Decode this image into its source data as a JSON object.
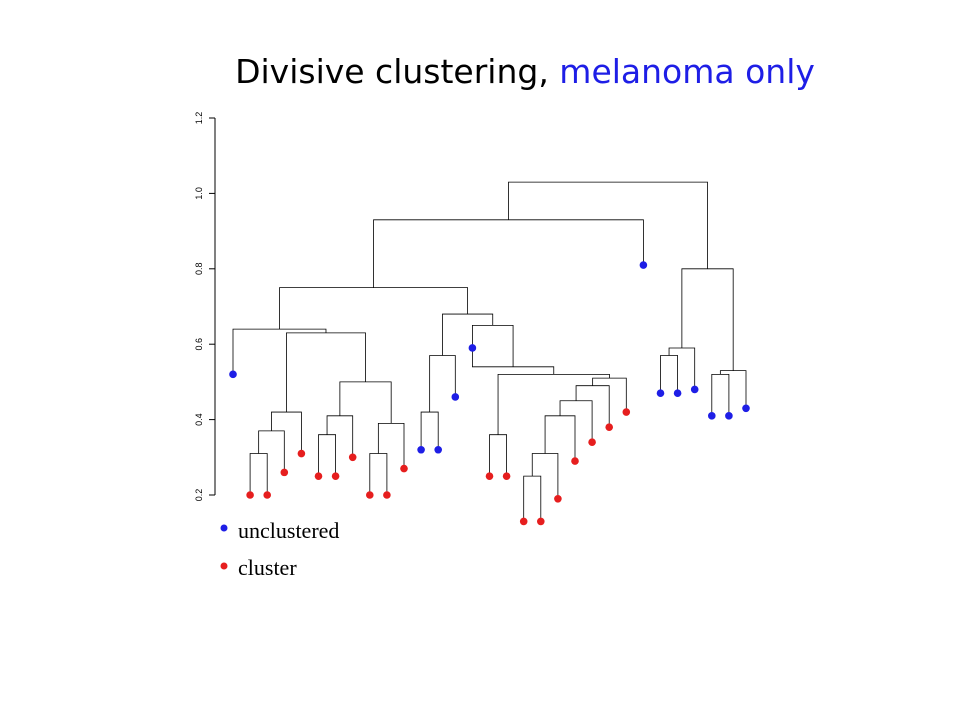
{
  "title": {
    "main": "Divisive clustering, ",
    "highlight": "melanoma only",
    "highlight_color": "#1e1ee6"
  },
  "chart_data": {
    "type": "dendrogram",
    "title": "Divisive clustering, melanoma only",
    "y_ticks": [
      "0.2",
      "0.4",
      "0.6",
      "0.8",
      "1.0",
      "1.2"
    ],
    "ylim": [
      0.2,
      1.2
    ],
    "legend": [
      {
        "label": "unclustered",
        "color": "#1e1ee6"
      },
      {
        "label": "cluster",
        "color": "#e61e1e"
      }
    ],
    "leaves": [
      {
        "x": 1,
        "h": 0.52,
        "cls": "unclustered"
      },
      {
        "x": 2,
        "h": 0.2,
        "cls": "cluster"
      },
      {
        "x": 3,
        "h": 0.2,
        "cls": "cluster"
      },
      {
        "x": 4,
        "h": 0.26,
        "cls": "cluster"
      },
      {
        "x": 5,
        "h": 0.31,
        "cls": "cluster"
      },
      {
        "x": 6,
        "h": 0.25,
        "cls": "cluster"
      },
      {
        "x": 7,
        "h": 0.25,
        "cls": "cluster"
      },
      {
        "x": 8,
        "h": 0.3,
        "cls": "cluster"
      },
      {
        "x": 9,
        "h": 0.2,
        "cls": "cluster"
      },
      {
        "x": 10,
        "h": 0.2,
        "cls": "cluster"
      },
      {
        "x": 11,
        "h": 0.27,
        "cls": "cluster"
      },
      {
        "x": 12,
        "h": 0.32,
        "cls": "unclustered"
      },
      {
        "x": 13,
        "h": 0.32,
        "cls": "unclustered"
      },
      {
        "x": 14,
        "h": 0.46,
        "cls": "unclustered"
      },
      {
        "x": 15,
        "h": 0.59,
        "cls": "unclustered"
      },
      {
        "x": 16,
        "h": 0.25,
        "cls": "cluster"
      },
      {
        "x": 17,
        "h": 0.25,
        "cls": "cluster"
      },
      {
        "x": 18,
        "h": 0.13,
        "cls": "cluster"
      },
      {
        "x": 19,
        "h": 0.13,
        "cls": "cluster"
      },
      {
        "x": 20,
        "h": 0.19,
        "cls": "cluster"
      },
      {
        "x": 21,
        "h": 0.29,
        "cls": "cluster"
      },
      {
        "x": 22,
        "h": 0.34,
        "cls": "cluster"
      },
      {
        "x": 23,
        "h": 0.38,
        "cls": "cluster"
      },
      {
        "x": 24,
        "h": 0.42,
        "cls": "cluster"
      },
      {
        "x": 25,
        "h": 0.81,
        "cls": "unclustered"
      },
      {
        "x": 26,
        "h": 0.47,
        "cls": "unclustered"
      },
      {
        "x": 27,
        "h": 0.47,
        "cls": "unclustered"
      },
      {
        "x": 28,
        "h": 0.48,
        "cls": "unclustered"
      },
      {
        "x": 29,
        "h": 0.41,
        "cls": "unclustered"
      },
      {
        "x": 30,
        "h": 0.41,
        "cls": "unclustered"
      },
      {
        "x": 31,
        "h": 0.43,
        "cls": "unclustered"
      }
    ],
    "merges": [
      {
        "l": [
          "L",
          2
        ],
        "r": [
          "L",
          3
        ],
        "h": 0.31
      },
      {
        "l": [
          "N",
          0
        ],
        "r": [
          "L",
          4
        ],
        "h": 0.37
      },
      {
        "l": [
          "N",
          1
        ],
        "r": [
          "L",
          5
        ],
        "h": 0.42
      },
      {
        "l": [
          "L",
          6
        ],
        "r": [
          "L",
          7
        ],
        "h": 0.36
      },
      {
        "l": [
          "N",
          3
        ],
        "r": [
          "L",
          8
        ],
        "h": 0.41
      },
      {
        "l": [
          "L",
          9
        ],
        "r": [
          "L",
          10
        ],
        "h": 0.31
      },
      {
        "l": [
          "N",
          5
        ],
        "r": [
          "L",
          11
        ],
        "h": 0.39
      },
      {
        "l": [
          "N",
          4
        ],
        "r": [
          "N",
          6
        ],
        "h": 0.5
      },
      {
        "l": [
          "N",
          2
        ],
        "r": [
          "N",
          7
        ],
        "h": 0.63
      },
      {
        "l": [
          "L",
          1
        ],
        "r": [
          "N",
          8
        ],
        "h": 0.64
      },
      {
        "l": [
          "L",
          12
        ],
        "r": [
          "L",
          13
        ],
        "h": 0.42
      },
      {
        "l": [
          "N",
          10
        ],
        "r": [
          "L",
          14
        ],
        "h": 0.57
      },
      {
        "l": [
          "L",
          16
        ],
        "r": [
          "L",
          17
        ],
        "h": 0.36
      },
      {
        "l": [
          "L",
          18
        ],
        "r": [
          "L",
          19
        ],
        "h": 0.25
      },
      {
        "l": [
          "N",
          13
        ],
        "r": [
          "L",
          20
        ],
        "h": 0.31
      },
      {
        "l": [
          "N",
          14
        ],
        "r": [
          "L",
          21
        ],
        "h": 0.41
      },
      {
        "l": [
          "N",
          15
        ],
        "r": [
          "L",
          22
        ],
        "h": 0.45
      },
      {
        "l": [
          "N",
          16
        ],
        "r": [
          "L",
          23
        ],
        "h": 0.49
      },
      {
        "l": [
          "N",
          17
        ],
        "r": [
          "L",
          24
        ],
        "h": 0.51
      },
      {
        "l": [
          "N",
          12
        ],
        "r": [
          "N",
          18
        ],
        "h": 0.52
      },
      {
        "l": [
          "N",
          19
        ],
        "r": [
          "L",
          15
        ],
        "h": 0.54
      },
      {
        "l": [
          "L",
          15
        ],
        "r": [
          "N",
          20
        ],
        "h": 0.65
      },
      {
        "l": [
          "N",
          11
        ],
        "r": [
          "N",
          21
        ],
        "h": 0.68
      },
      {
        "l": [
          "N",
          9
        ],
        "r": [
          "N",
          22
        ],
        "h": 0.75
      },
      {
        "l": [
          "L",
          26
        ],
        "r": [
          "L",
          27
        ],
        "h": 0.57
      },
      {
        "l": [
          "N",
          24
        ],
        "r": [
          "L",
          28
        ],
        "h": 0.59
      },
      {
        "l": [
          "L",
          29
        ],
        "r": [
          "L",
          30
        ],
        "h": 0.52
      },
      {
        "l": [
          "N",
          26
        ],
        "r": [
          "L",
          31
        ],
        "h": 0.53
      },
      {
        "l": [
          "N",
          25
        ],
        "r": [
          "N",
          27
        ],
        "h": 0.8
      },
      {
        "l": [
          "N",
          23
        ],
        "r": [
          "L",
          25
        ],
        "h": 0.93
      },
      {
        "l": [
          "N",
          29
        ],
        "r": [
          "N",
          28
        ],
        "h": 1.03
      }
    ]
  }
}
